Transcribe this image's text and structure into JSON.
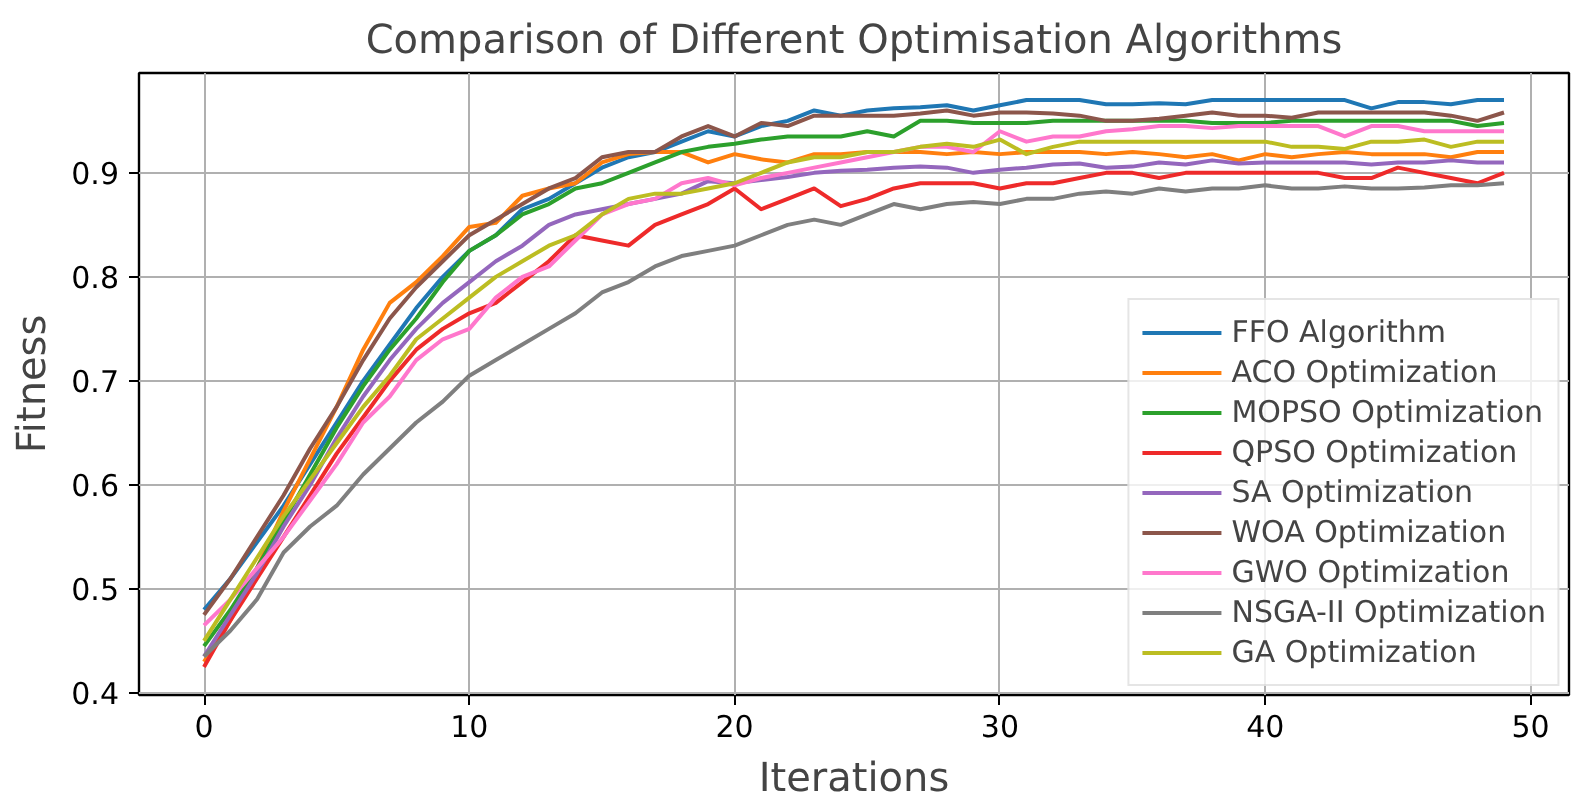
{
  "chart_data": {
    "type": "line",
    "title": "Comparison of Different Optimisation Algorithms",
    "xlabel": "Iterations",
    "ylabel": "Fitness",
    "x": [
      0,
      1,
      2,
      3,
      4,
      5,
      6,
      7,
      8,
      9,
      10,
      11,
      12,
      13,
      14,
      15,
      16,
      17,
      18,
      19,
      20,
      21,
      22,
      23,
      24,
      25,
      26,
      27,
      28,
      29,
      30,
      31,
      32,
      33,
      34,
      35,
      36,
      37,
      38,
      39,
      40,
      41,
      42,
      43,
      44,
      45,
      46,
      47,
      48,
      49
    ],
    "xlim": [
      -2.45,
      51.45
    ],
    "xticks": [
      0,
      10,
      20,
      30,
      40,
      50
    ],
    "ylim": [
      0.398,
      0.996
    ],
    "yticks": [
      0.4,
      0.5,
      0.6,
      0.7,
      0.8,
      0.9
    ],
    "grid": true,
    "legend": "bottom right",
    "line_style": "solid",
    "series": [
      {
        "name": "FFO Algorithm",
        "color": "#1f77b4",
        "values": [
          0.48,
          0.51,
          0.545,
          0.58,
          0.62,
          0.66,
          0.7,
          0.735,
          0.77,
          0.8,
          0.825,
          0.84,
          0.865,
          0.875,
          0.89,
          0.905,
          0.915,
          0.92,
          0.93,
          0.94,
          0.935,
          0.945,
          0.95,
          0.96,
          0.955,
          0.96,
          0.962,
          0.963,
          0.965,
          0.96,
          0.965,
          0.97,
          0.97,
          0.97,
          0.966,
          0.966,
          0.967,
          0.966,
          0.97,
          0.97,
          0.97,
          0.97,
          0.97,
          0.97,
          0.962,
          0.968,
          0.968,
          0.966,
          0.97,
          0.97
        ]
      },
      {
        "name": "ACO Optimization",
        "color": "#ff7f0e",
        "values": [
          0.43,
          0.47,
          0.52,
          0.575,
          0.625,
          0.675,
          0.73,
          0.775,
          0.795,
          0.82,
          0.848,
          0.852,
          0.878,
          0.885,
          0.89,
          0.91,
          0.918,
          0.92,
          0.92,
          0.91,
          0.918,
          0.913,
          0.91,
          0.918,
          0.918,
          0.92,
          0.92,
          0.92,
          0.918,
          0.92,
          0.918,
          0.92,
          0.92,
          0.92,
          0.918,
          0.92,
          0.918,
          0.915,
          0.918,
          0.912,
          0.918,
          0.915,
          0.918,
          0.92,
          0.918,
          0.918,
          0.918,
          0.915,
          0.92,
          0.92
        ]
      },
      {
        "name": "MOPSO Optimization",
        "color": "#2ca02c",
        "values": [
          0.445,
          0.48,
          0.52,
          0.565,
          0.61,
          0.655,
          0.695,
          0.73,
          0.76,
          0.795,
          0.825,
          0.84,
          0.86,
          0.87,
          0.885,
          0.89,
          0.9,
          0.91,
          0.92,
          0.925,
          0.928,
          0.932,
          0.935,
          0.935,
          0.935,
          0.94,
          0.935,
          0.95,
          0.95,
          0.948,
          0.948,
          0.948,
          0.95,
          0.95,
          0.95,
          0.95,
          0.95,
          0.95,
          0.948,
          0.948,
          0.948,
          0.95,
          0.95,
          0.95,
          0.95,
          0.95,
          0.95,
          0.95,
          0.945,
          0.948
        ]
      },
      {
        "name": "QPSO Optimization",
        "color": "#ee2a2a",
        "values": [
          0.425,
          0.47,
          0.51,
          0.55,
          0.59,
          0.63,
          0.665,
          0.7,
          0.73,
          0.75,
          0.765,
          0.775,
          0.795,
          0.815,
          0.84,
          0.835,
          0.83,
          0.85,
          0.86,
          0.87,
          0.885,
          0.865,
          0.875,
          0.885,
          0.868,
          0.875,
          0.885,
          0.89,
          0.89,
          0.89,
          0.885,
          0.89,
          0.89,
          0.895,
          0.9,
          0.9,
          0.895,
          0.9,
          0.9,
          0.9,
          0.9,
          0.9,
          0.9,
          0.895,
          0.895,
          0.905,
          0.9,
          0.895,
          0.89,
          0.9
        ]
      },
      {
        "name": "SA Optimization",
        "color": "#9467bd",
        "values": [
          0.435,
          0.475,
          0.515,
          0.56,
          0.6,
          0.645,
          0.685,
          0.72,
          0.75,
          0.775,
          0.795,
          0.815,
          0.83,
          0.85,
          0.86,
          0.865,
          0.87,
          0.875,
          0.88,
          0.892,
          0.89,
          0.893,
          0.896,
          0.9,
          0.902,
          0.903,
          0.905,
          0.906,
          0.905,
          0.9,
          0.903,
          0.905,
          0.908,
          0.909,
          0.905,
          0.906,
          0.91,
          0.908,
          0.912,
          0.909,
          0.91,
          0.91,
          0.91,
          0.91,
          0.908,
          0.91,
          0.91,
          0.912,
          0.91,
          0.91
        ]
      },
      {
        "name": "WOA Optimization",
        "color": "#8c564b",
        "values": [
          0.475,
          0.51,
          0.55,
          0.59,
          0.635,
          0.675,
          0.72,
          0.76,
          0.79,
          0.815,
          0.84,
          0.855,
          0.87,
          0.885,
          0.895,
          0.915,
          0.92,
          0.92,
          0.935,
          0.945,
          0.935,
          0.948,
          0.945,
          0.955,
          0.955,
          0.955,
          0.955,
          0.957,
          0.96,
          0.955,
          0.958,
          0.958,
          0.957,
          0.955,
          0.95,
          0.95,
          0.952,
          0.955,
          0.958,
          0.955,
          0.955,
          0.953,
          0.958,
          0.958,
          0.958,
          0.958,
          0.958,
          0.955,
          0.95,
          0.958
        ]
      },
      {
        "name": "GWO Optimization",
        "color": "#ff77cc",
        "values": [
          0.465,
          0.49,
          0.52,
          0.55,
          0.585,
          0.62,
          0.66,
          0.685,
          0.72,
          0.74,
          0.75,
          0.78,
          0.8,
          0.81,
          0.835,
          0.86,
          0.87,
          0.875,
          0.89,
          0.895,
          0.888,
          0.895,
          0.9,
          0.905,
          0.91,
          0.915,
          0.92,
          0.925,
          0.925,
          0.92,
          0.94,
          0.93,
          0.935,
          0.935,
          0.94,
          0.942,
          0.945,
          0.945,
          0.943,
          0.945,
          0.945,
          0.945,
          0.945,
          0.935,
          0.945,
          0.945,
          0.94,
          0.94,
          0.94,
          0.94
        ]
      },
      {
        "name": "NSGA-II Optimization",
        "color": "#7f7f7f",
        "values": [
          0.435,
          0.46,
          0.49,
          0.535,
          0.56,
          0.58,
          0.61,
          0.635,
          0.66,
          0.68,
          0.705,
          0.72,
          0.735,
          0.75,
          0.765,
          0.785,
          0.795,
          0.81,
          0.82,
          0.825,
          0.83,
          0.84,
          0.85,
          0.855,
          0.85,
          0.86,
          0.87,
          0.865,
          0.87,
          0.872,
          0.87,
          0.875,
          0.875,
          0.88,
          0.882,
          0.88,
          0.885,
          0.882,
          0.885,
          0.885,
          0.888,
          0.885,
          0.885,
          0.887,
          0.885,
          0.885,
          0.886,
          0.888,
          0.888,
          0.89
        ]
      },
      {
        "name": "GA Optimization",
        "color": "#bcbd22",
        "values": [
          0.45,
          0.49,
          0.53,
          0.57,
          0.605,
          0.64,
          0.675,
          0.705,
          0.74,
          0.76,
          0.78,
          0.8,
          0.815,
          0.83,
          0.84,
          0.86,
          0.875,
          0.88,
          0.88,
          0.885,
          0.89,
          0.9,
          0.91,
          0.915,
          0.915,
          0.92,
          0.92,
          0.925,
          0.928,
          0.925,
          0.932,
          0.918,
          0.925,
          0.93,
          0.93,
          0.93,
          0.93,
          0.93,
          0.93,
          0.93,
          0.93,
          0.925,
          0.925,
          0.923,
          0.93,
          0.93,
          0.932,
          0.925,
          0.93,
          0.93
        ]
      }
    ]
  }
}
